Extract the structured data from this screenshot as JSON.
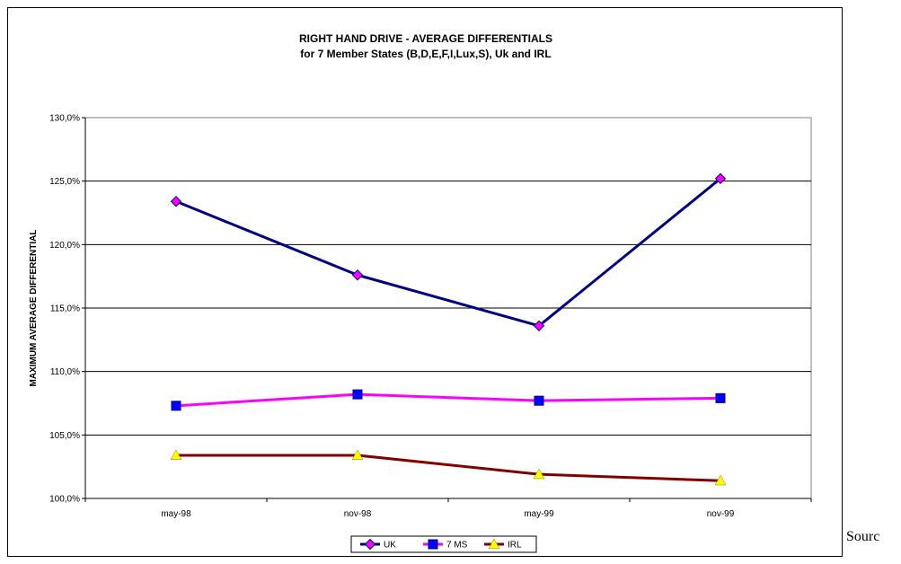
{
  "trailing_text": "Sourc",
  "chart_data": {
    "type": "line",
    "title": "RIGHT HAND DRIVE - AVERAGE DIFFERENTIALS",
    "subtitle": "for 7 Member States (B,D,E,F,I,Lux,S), Uk and IRL",
    "xlabel": "",
    "ylabel": "MAXIMUM AVERAGE DIFFERENTIAL",
    "categories": [
      "may-98",
      "nov-98",
      "may-99",
      "nov-99"
    ],
    "ylim": [
      100,
      130
    ],
    "yticks": [
      100,
      105,
      110,
      115,
      120,
      125,
      130
    ],
    "ytick_labels": [
      "100,0%",
      "105,0%",
      "110,0%",
      "115,0%",
      "120,0%",
      "125,0%",
      "130,0%"
    ],
    "grid": true,
    "legend_position": "bottom",
    "series": [
      {
        "name": "UK",
        "values": [
          123.4,
          117.6,
          113.6,
          125.2
        ],
        "line_color": "#000080",
        "marker": "diamond",
        "marker_color": "#ff00ff"
      },
      {
        "name": "7 MS",
        "values": [
          107.3,
          108.2,
          107.7,
          107.9
        ],
        "line_color": "#ff00ff",
        "marker": "square",
        "marker_color": "#0000ff"
      },
      {
        "name": "IRL",
        "values": [
          103.4,
          103.4,
          101.9,
          101.4
        ],
        "line_color": "#800000",
        "marker": "triangle",
        "marker_color": "#ffff00"
      }
    ]
  }
}
